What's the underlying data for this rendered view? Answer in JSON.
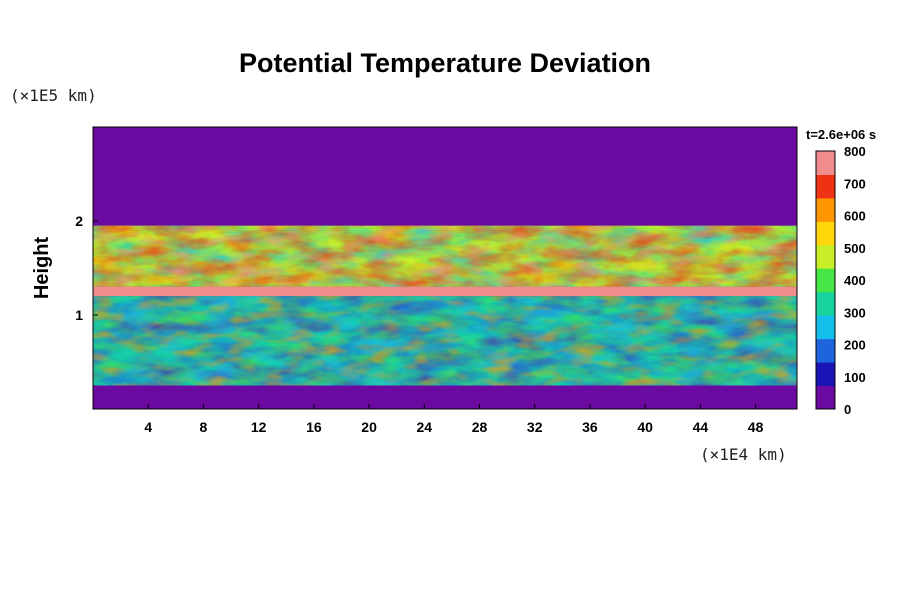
{
  "chart_data": {
    "type": "heatmap",
    "title": "Potential Temperature Deviation",
    "time_label": "t=2.6e+06 s",
    "xlabel": "",
    "ylabel": "Height",
    "x_unit": "(×1E4 km)",
    "y_unit": "(×1E5 km)",
    "xlim": [
      0,
      51
    ],
    "ylim": [
      0,
      3
    ],
    "x_ticks": [
      4,
      8,
      12,
      16,
      20,
      24,
      28,
      32,
      36,
      40,
      44,
      48
    ],
    "y_ticks": [
      1,
      2
    ],
    "colorbar": {
      "min": 0,
      "max": 800,
      "ticks": [
        0,
        100,
        200,
        300,
        400,
        500,
        600,
        700,
        800
      ],
      "colors": [
        "#6a0aa0",
        "#1a14b4",
        "#1e64dc",
        "#14beeb",
        "#18d2a0",
        "#46e646",
        "#c8ee28",
        "#ffd60a",
        "#ff9600",
        "#f03214",
        "#f08c8c"
      ]
    },
    "regions": [
      {
        "name": "upper layer",
        "y_range": [
          1.95,
          3.0
        ],
        "value": 0
      },
      {
        "name": "turbulent upper band",
        "y_range": [
          1.3,
          1.95
        ],
        "value_range": [
          300,
          800
        ]
      },
      {
        "name": "inversion band",
        "y_range": [
          1.2,
          1.3
        ],
        "value": 800
      },
      {
        "name": "turbulent lower band",
        "y_range": [
          0.25,
          1.2
        ],
        "value_range": [
          0,
          450
        ]
      },
      {
        "name": "lower layer",
        "y_range": [
          0,
          0.25
        ],
        "value": 0
      }
    ]
  }
}
